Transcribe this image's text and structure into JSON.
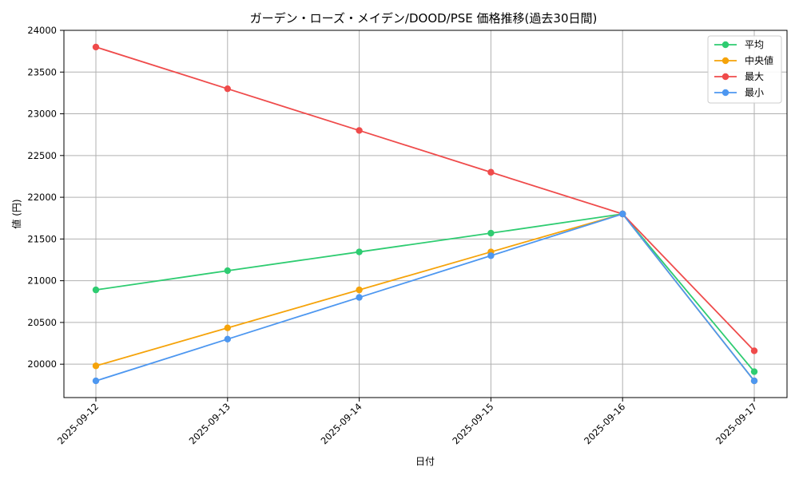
{
  "chart_data": {
    "type": "line",
    "title": "ガーデン・ローズ・メイデン/DOOD/PSE 価格推移(過去30日間)",
    "xlabel": "日付",
    "ylabel": "値 (円)",
    "categories": [
      "2025-09-12",
      "2025-09-13",
      "2025-09-14",
      "2025-09-15",
      "2025-09-16",
      "2025-09-17"
    ],
    "ylim": [
      19600,
      24000
    ],
    "yticks": [
      20000,
      20500,
      21000,
      21500,
      22000,
      22500,
      23000,
      23500,
      24000
    ],
    "grid": true,
    "legend_position": "top-right",
    "series": [
      {
        "name": "平均",
        "color": "#2ecc71",
        "values": [
          20890,
          21120,
          21345,
          21570,
          21800,
          19910
        ]
      },
      {
        "name": "中央値",
        "color": "#f5a30a",
        "values": [
          19980,
          20435,
          20890,
          21345,
          21800,
          19800
        ]
      },
      {
        "name": "最大",
        "color": "#ef4b4b",
        "values": [
          23800,
          23300,
          22800,
          22300,
          21800,
          20160
        ]
      },
      {
        "name": "最小",
        "color": "#4d97f0",
        "values": [
          19800,
          20300,
          20800,
          21300,
          21800,
          19800
        ]
      }
    ]
  }
}
